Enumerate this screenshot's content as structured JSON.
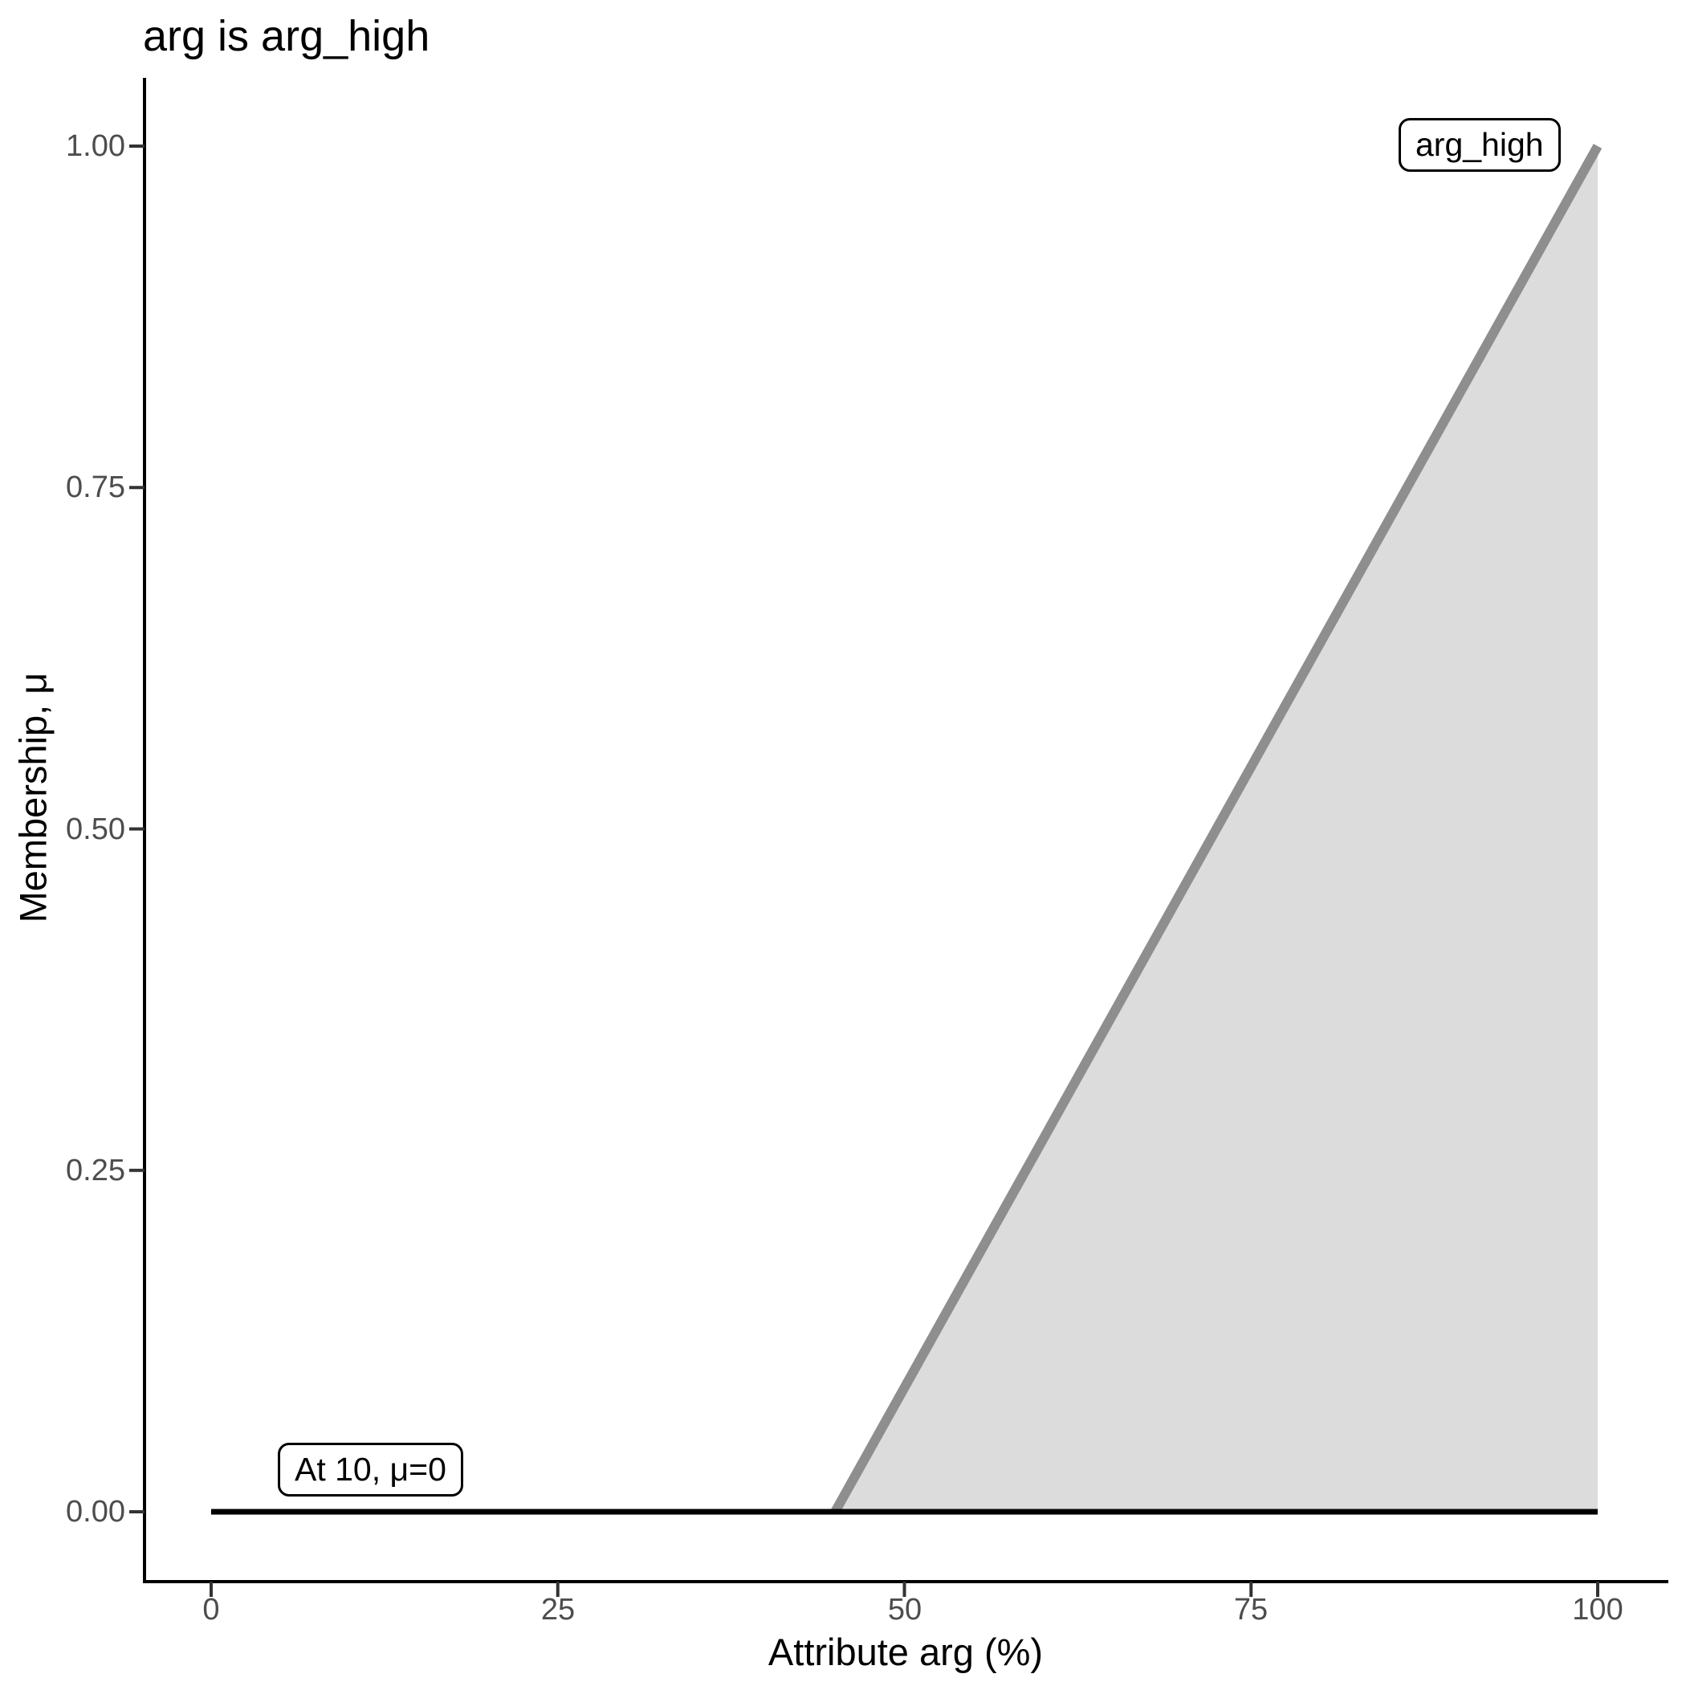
{
  "chart_data": {
    "type": "area",
    "title": "arg is arg_high",
    "xlabel": "Attribute arg (%)",
    "ylabel": "Membership, μ",
    "xlim": [
      0,
      100
    ],
    "ylim": [
      0,
      1
    ],
    "grid": false,
    "legend_position": "none",
    "x_ticks": [
      0,
      25,
      50,
      75,
      100
    ],
    "x_tick_labels": [
      "0",
      "25",
      "50",
      "75",
      "100"
    ],
    "y_ticks": [
      0,
      0.25,
      0.5,
      0.75,
      1
    ],
    "y_tick_labels": [
      "0.00",
      "0.25",
      "0.50",
      "0.75",
      "1.00"
    ],
    "series": [
      {
        "name": "zero_baseline",
        "x": [
          0,
          100
        ],
        "y": [
          0,
          0
        ],
        "color": "#000000",
        "stroke_width": 7,
        "fill": null
      },
      {
        "name": "arg_high_membership",
        "x": [
          45,
          100
        ],
        "y": [
          0,
          1
        ],
        "color": "#8E8E8E",
        "stroke_width": 12,
        "fill": "#DCDCDC"
      }
    ],
    "annotations": [
      {
        "text": "At 10, μ=0",
        "x": 10,
        "y": 0
      },
      {
        "text": "arg_high",
        "x": 92,
        "y": 1
      }
    ],
    "colors": {
      "axis_line": "#000000",
      "tick_mark": "#333333",
      "tick_label": "#4d4d4d",
      "title": "#000000",
      "background": "#ffffff"
    }
  }
}
